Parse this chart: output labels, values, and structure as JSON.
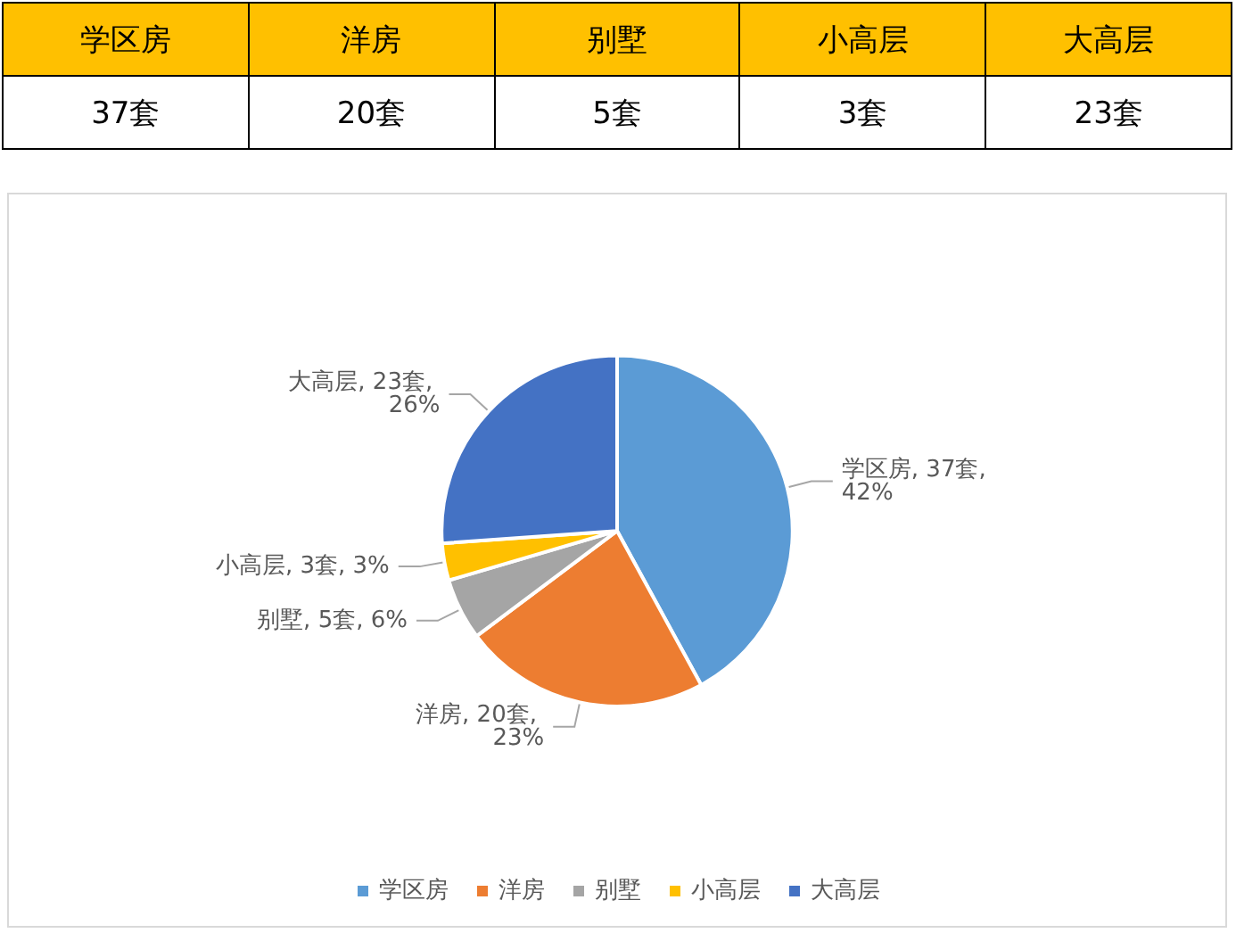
{
  "chart_data": {
    "type": "pie",
    "categories": [
      "学区房",
      "洋房",
      "别墅",
      "小高层",
      "大高层"
    ],
    "values": [
      37,
      20,
      5,
      3,
      23
    ],
    "value_labels": [
      "学区房, 37套, 42%",
      "洋房, 20套, 23%",
      "别墅, 5套, 6%",
      "小高层, 3套, 3%",
      "大高层, 23套, 26%"
    ],
    "annotations": [
      "37套",
      "20套",
      "5套",
      "3套",
      "23套"
    ],
    "colors": [
      "#5b9bd5",
      "#ed7d31",
      "#a5a5a5",
      "#ffc000",
      "#4472c4"
    ],
    "legend": "bottom"
  }
}
